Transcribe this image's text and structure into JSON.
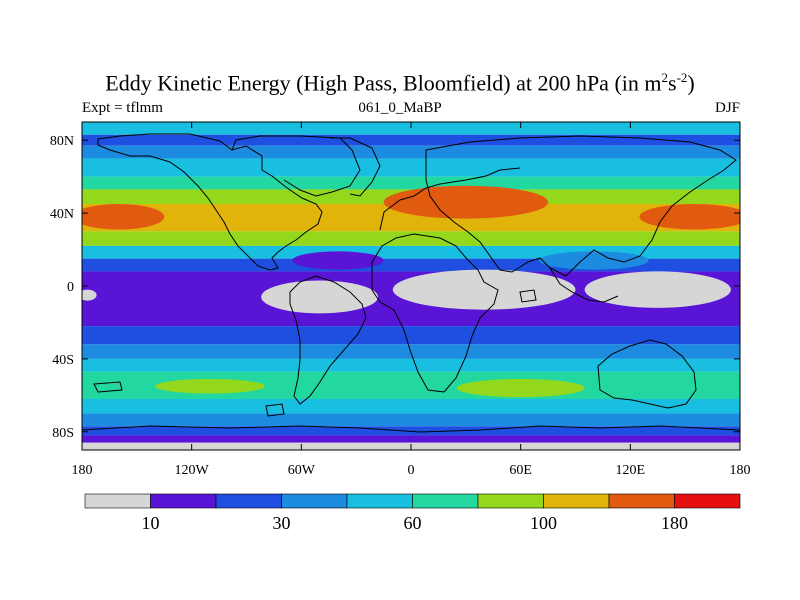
{
  "title": {
    "main": "Eddy Kinetic Energy (High Pass, Bloomfield) at 200 hPa (in m",
    "sup1": "2",
    "mid": "s",
    "sup2": "-2",
    "end": ")"
  },
  "subtitle": {
    "left": "Expt = tflmm",
    "center": "061_0_MaBP",
    "right": "DJF"
  },
  "axes": {
    "lat_labels": [
      "80N",
      "40N",
      "0",
      "40S",
      "80S"
    ],
    "lat_values": [
      80,
      40,
      0,
      -40,
      -80
    ],
    "lon_labels": [
      "180",
      "120W",
      "60W",
      "0",
      "60E",
      "120E",
      "180"
    ],
    "lon_values": [
      -180,
      -120,
      -60,
      0,
      60,
      120,
      180
    ]
  },
  "colorbar": {
    "colors": [
      "#d6d6d6",
      "#5a14d6",
      "#1e4fe0",
      "#1c8be0",
      "#18bfe0",
      "#22d7a0",
      "#93d81c",
      "#e0b40a",
      "#e05a10",
      "#e61010"
    ],
    "labels": [
      "10",
      "30",
      "60",
      "100",
      "180"
    ]
  },
  "map_data": {
    "lat_range": [
      -90,
      90
    ],
    "lon_range": [
      -180,
      180
    ],
    "bands": [
      {
        "lat_from": 90,
        "lat_to": 83,
        "level": 4
      },
      {
        "lat_from": 83,
        "lat_to": 77,
        "level": 2
      },
      {
        "lat_from": 77,
        "lat_to": 70,
        "level": 3
      },
      {
        "lat_from": 70,
        "lat_to": 60,
        "level": 4
      },
      {
        "lat_from": 60,
        "lat_to": 53,
        "level": 5
      },
      {
        "lat_from": 53,
        "lat_to": 45,
        "level": 6
      },
      {
        "lat_from": 45,
        "lat_to": 30,
        "level": 7
      },
      {
        "lat_from": 30,
        "lat_to": 22,
        "level": 6
      },
      {
        "lat_from": 22,
        "lat_to": 15,
        "level": 4
      },
      {
        "lat_from": 15,
        "lat_to": 8,
        "level": 2
      },
      {
        "lat_from": 8,
        "lat_to": -22,
        "level": 1
      },
      {
        "lat_from": -22,
        "lat_to": -32,
        "level": 2
      },
      {
        "lat_from": -32,
        "lat_to": -40,
        "level": 3
      },
      {
        "lat_from": -40,
        "lat_to": -47,
        "level": 4
      },
      {
        "lat_from": -47,
        "lat_to": -62,
        "level": 5
      },
      {
        "lat_from": -62,
        "lat_to": -70,
        "level": 4
      },
      {
        "lat_from": -70,
        "lat_to": -77,
        "level": 3
      },
      {
        "lat_from": -77,
        "lat_to": -82,
        "level": 2
      },
      {
        "lat_from": -82,
        "lat_to": -86,
        "level": 1
      },
      {
        "lat_from": -86,
        "lat_to": -90,
        "level": 0
      }
    ],
    "features": [
      {
        "type": "ellipse",
        "lon": -160,
        "lat": 38,
        "rlon": 25,
        "rlat": 7,
        "level": 8
      },
      {
        "type": "ellipse",
        "lon": 30,
        "lat": 46,
        "rlon": 45,
        "rlat": 9,
        "level": 8
      },
      {
        "type": "ellipse",
        "lon": 155,
        "lat": 38,
        "rlon": 30,
        "rlat": 7,
        "level": 8
      },
      {
        "type": "ellipse",
        "lon": -40,
        "lat": 14,
        "rlon": 25,
        "rlat": 5,
        "level": 1
      },
      {
        "type": "ellipse",
        "lon": 100,
        "lat": 14,
        "rlon": 30,
        "rlat": 5,
        "level": 3
      },
      {
        "type": "ellipse",
        "lon": -50,
        "lat": -6,
        "rlon": 32,
        "rlat": 9,
        "level": 0
      },
      {
        "type": "ellipse",
        "lon": 40,
        "lat": -2,
        "rlon": 50,
        "rlat": 11,
        "level": 0
      },
      {
        "type": "ellipse",
        "lon": 135,
        "lat": -2,
        "rlon": 40,
        "rlat": 10,
        "level": 0
      },
      {
        "type": "ellipse",
        "lon": -177,
        "lat": -5,
        "rlon": 5,
        "rlat": 3,
        "level": 0
      },
      {
        "type": "ellipse",
        "lon": 60,
        "lat": -56,
        "rlon": 35,
        "rlat": 5,
        "level": 6
      },
      {
        "type": "ellipse",
        "lon": -110,
        "lat": -55,
        "rlon": 30,
        "rlat": 4,
        "level": 6
      }
    ]
  }
}
